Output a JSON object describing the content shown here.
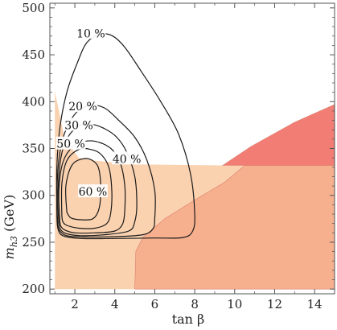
{
  "chart_data": {
    "type": "contour",
    "xlabel": "tan β",
    "ylabel": "m_{h3} (GeV)",
    "ylabel_main": "m",
    "ylabel_sub": "h3",
    "ylabel_unit": " (GeV)",
    "xlim": [
      0.75,
      15
    ],
    "ylim": [
      195,
      505
    ],
    "x_ticks": [
      2,
      4,
      6,
      8,
      10,
      12,
      14
    ],
    "y_ticks": [
      200,
      250,
      300,
      350,
      400,
      450,
      500
    ],
    "x_tick_labels": [
      "2",
      "4",
      "6",
      "8",
      "10",
      "12",
      "14"
    ],
    "y_tick_labels": [
      "200",
      "250",
      "300",
      "350",
      "400",
      "450",
      "500"
    ],
    "grid": false,
    "colors": {
      "light_region": "#fbd2b0",
      "medium_region": "#f6b08e",
      "dark_region": "#f1766e",
      "contour_line": "#1a1a1a"
    },
    "regions": [
      {
        "id": "excluded-light",
        "color": "light_region",
        "points": [
          [
            1,
            200
          ],
          [
            1,
            411
          ],
          [
            1.5,
            360
          ],
          [
            2.2,
            340
          ],
          [
            3,
            337
          ],
          [
            5,
            333
          ],
          [
            9.5,
            332
          ],
          [
            15,
            332
          ],
          [
            15,
            200
          ]
        ]
      },
      {
        "id": "excluded-medium",
        "color": "medium_region",
        "points": [
          [
            5,
            200
          ],
          [
            5.05,
            240
          ],
          [
            5.4,
            255
          ],
          [
            6.5,
            275
          ],
          [
            8,
            295
          ],
          [
            9.5,
            314
          ],
          [
            10.5,
            332
          ],
          [
            15,
            332
          ],
          [
            15,
            200
          ]
        ]
      },
      {
        "id": "excluded-dark",
        "color": "dark_region",
        "points": [
          [
            9.4,
            332
          ],
          [
            10.8,
            352
          ],
          [
            13,
            378
          ],
          [
            15,
            397
          ],
          [
            15,
            332
          ]
        ]
      }
    ],
    "contours": [
      {
        "label": "10 %",
        "level": 10,
        "label_position": [
          2.8,
          473
        ],
        "points": [
          [
            1.1,
            280
          ],
          [
            1.1,
            330
          ],
          [
            1.25,
            372
          ],
          [
            1.6,
            410
          ],
          [
            2.1,
            440
          ],
          [
            2.6,
            463
          ],
          [
            3.3,
            472
          ],
          [
            3.9,
            470
          ],
          [
            4.5,
            458
          ],
          [
            5.3,
            433
          ],
          [
            6.3,
            400
          ],
          [
            7.2,
            365
          ],
          [
            7.8,
            322
          ],
          [
            8,
            280
          ],
          [
            7.9,
            262
          ],
          [
            7.4,
            255
          ],
          [
            6,
            254.5
          ],
          [
            4,
            254
          ],
          [
            2.3,
            254
          ],
          [
            1.4,
            257
          ],
          [
            1.15,
            265
          ],
          [
            1.1,
            280
          ]
        ]
      },
      {
        "label": "20 %",
        "level": 20,
        "label_position": [
          2.4,
          395
        ],
        "points": [
          [
            1.15,
            268
          ],
          [
            1.1,
            298
          ],
          [
            1.2,
            338
          ],
          [
            1.5,
            367
          ],
          [
            2.1,
            389
          ],
          [
            2.8,
            396
          ],
          [
            3.5,
            393
          ],
          [
            4.2,
            380
          ],
          [
            5,
            362
          ],
          [
            5.6,
            338
          ],
          [
            6,
            305
          ],
          [
            6,
            275
          ],
          [
            5.9,
            264
          ],
          [
            5.4,
            258
          ],
          [
            4,
            256
          ],
          [
            2.5,
            255.5
          ],
          [
            1.6,
            257
          ],
          [
            1.25,
            262
          ],
          [
            1.15,
            268
          ]
        ]
      },
      {
        "label": "30 %",
        "level": 30,
        "label_position": [
          2.2,
          375
        ],
        "points": [
          [
            1.2,
            270
          ],
          [
            1.15,
            300
          ],
          [
            1.3,
            340
          ],
          [
            1.65,
            362
          ],
          [
            2.2,
            374
          ],
          [
            2.8,
            376
          ],
          [
            3.5,
            371
          ],
          [
            4.1,
            362
          ],
          [
            4.6,
            346
          ],
          [
            5,
            320
          ],
          [
            5.1,
            290
          ],
          [
            5,
            272
          ],
          [
            4.7,
            262
          ],
          [
            3.5,
            258
          ],
          [
            2.3,
            257
          ],
          [
            1.6,
            259
          ],
          [
            1.3,
            263
          ],
          [
            1.2,
            270
          ]
        ]
      },
      {
        "label": "40 %",
        "level": 40,
        "label_position": [
          4.6,
          339
        ],
        "points": [
          [
            1.25,
            272
          ],
          [
            1.2,
            305
          ],
          [
            1.4,
            335
          ],
          [
            1.9,
            352
          ],
          [
            2.6,
            358
          ],
          [
            3.3,
            356
          ],
          [
            3.9,
            348
          ],
          [
            4.3,
            333
          ],
          [
            4.5,
            310
          ],
          [
            4.5,
            285
          ],
          [
            4.4,
            270
          ],
          [
            4,
            262
          ],
          [
            3,
            260
          ],
          [
            2,
            260
          ],
          [
            1.5,
            263
          ],
          [
            1.3,
            267
          ],
          [
            1.25,
            272
          ]
        ]
      },
      {
        "label": "50 %",
        "level": 50,
        "label_position": [
          1.8,
          355
        ],
        "points": [
          [
            1.35,
            278
          ],
          [
            1.35,
            312
          ],
          [
            1.6,
            337
          ],
          [
            2.2,
            349
          ],
          [
            2.8,
            349
          ],
          [
            3.3,
            344
          ],
          [
            3.7,
            330
          ],
          [
            3.85,
            305
          ],
          [
            3.8,
            282
          ],
          [
            3.6,
            270
          ],
          [
            3,
            265
          ],
          [
            2.2,
            265
          ],
          [
            1.6,
            268
          ],
          [
            1.4,
            272
          ],
          [
            1.35,
            278
          ]
        ]
      },
      {
        "label": "60 %",
        "level": 60,
        "label_position": [
          2.9,
          304
        ],
        "points": [
          [
            1.6,
            282
          ],
          [
            1.55,
            310
          ],
          [
            1.85,
            332
          ],
          [
            2.4,
            339
          ],
          [
            2.9,
            337
          ],
          [
            3.2,
            328
          ],
          [
            3.3,
            305
          ],
          [
            3.2,
            285
          ],
          [
            2.9,
            275
          ],
          [
            2.3,
            274
          ],
          [
            1.8,
            276
          ],
          [
            1.6,
            282
          ]
        ]
      }
    ]
  }
}
